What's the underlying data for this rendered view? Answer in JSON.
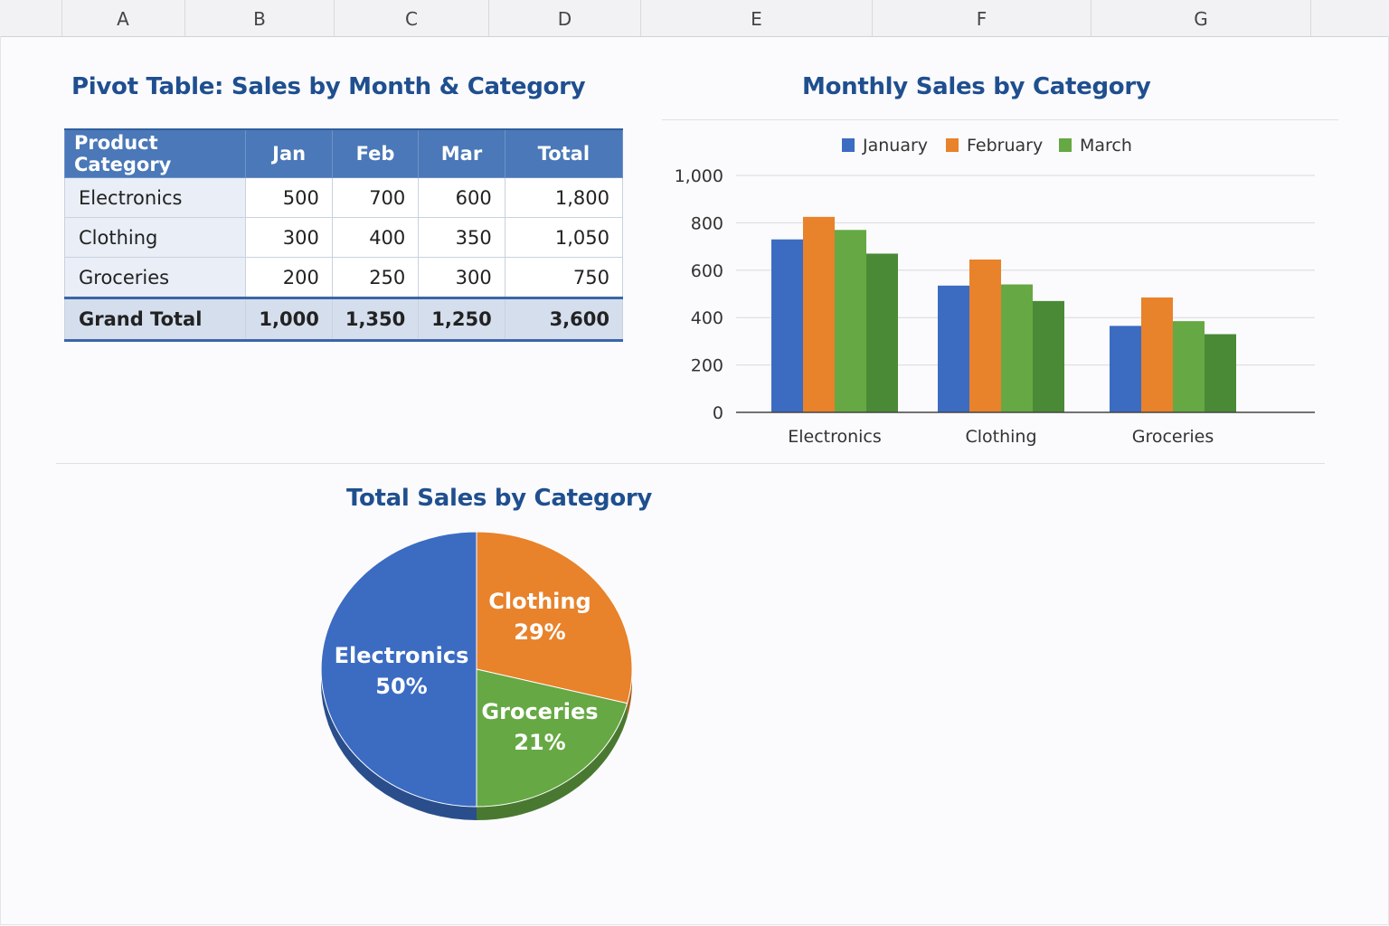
{
  "columns": [
    "A",
    "B",
    "C",
    "D",
    "E",
    "F",
    "G"
  ],
  "pivot": {
    "title": "Pivot Table: Sales by Month & Category",
    "headers": [
      "Product Category",
      "Jan",
      "Feb",
      "Mar",
      "Total"
    ],
    "rows": [
      [
        "Electronics",
        "500",
        "700",
        "600",
        "1,800"
      ],
      [
        "Clothing",
        "300",
        "400",
        "350",
        "1,050"
      ],
      [
        "Groceries",
        "200",
        "250",
        "300",
        "750"
      ]
    ],
    "grand_total": [
      "Grand Total",
      "1,000",
      "1,350",
      "1,250",
      "3,600"
    ]
  },
  "colors": {
    "january": "#3b6cc2",
    "february": "#e8822b",
    "march": "#66a843",
    "dark_green": "#4a8a37",
    "title": "#1f4f8f"
  },
  "chart_data": [
    {
      "type": "bar",
      "title": "Monthly Sales by Category",
      "categories": [
        "Electronics",
        "Clothing",
        "Groceries"
      ],
      "series": [
        {
          "name": "January",
          "color": "#3b6cc2",
          "values": [
            730,
            535,
            365
          ]
        },
        {
          "name": "February",
          "color": "#e8822b",
          "values": [
            825,
            645,
            485
          ]
        },
        {
          "name": "March",
          "color": "#66a843",
          "values": [
            770,
            540,
            385
          ]
        },
        {
          "color": "#4a8a37",
          "values": [
            670,
            470,
            330
          ]
        }
      ],
      "ylim": [
        0,
        1000
      ],
      "yticks": [
        "0",
        "200",
        "400",
        "600",
        "800",
        "1,000"
      ],
      "ytick_values": [
        0,
        200,
        400,
        600,
        800,
        1000
      ],
      "grid": true,
      "legend": "top"
    },
    {
      "type": "pie",
      "title": "Total Sales by Category",
      "labels": [
        "Clothing",
        "Groceries",
        "Electronics"
      ],
      "values": [
        29,
        21,
        50
      ],
      "value_labels": [
        "29%",
        "21%",
        "50%"
      ],
      "colors": [
        "#e8822b",
        "#66a843",
        "#3b6cc2"
      ]
    }
  ]
}
